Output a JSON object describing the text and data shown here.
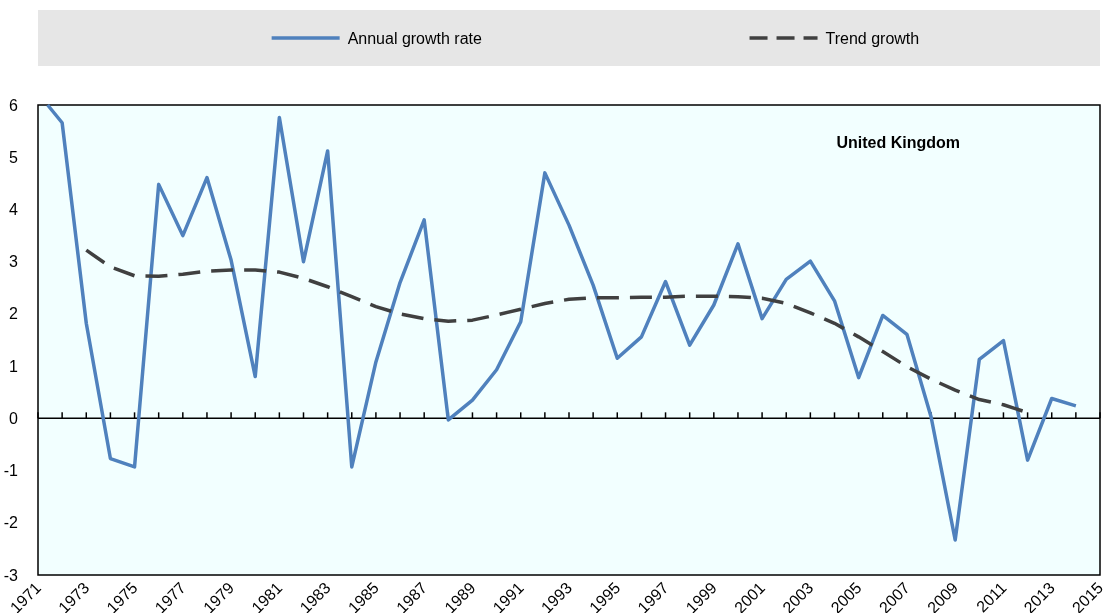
{
  "chart_data": {
    "type": "line",
    "legend": "top",
    "grid": false,
    "xlim": [
      1971,
      2015
    ],
    "xticks": [
      1971,
      {
        "value": 1972,
        "label": null
      },
      1973,
      {
        "value": 1974,
        "label": null
      },
      1975,
      {
        "value": 1976,
        "label": null
      },
      1977,
      {
        "value": 1978,
        "label": null
      },
      1979,
      {
        "value": 1980,
        "label": null
      },
      1981,
      {
        "value": 1982,
        "label": null
      },
      1983,
      {
        "value": 1984,
        "label": null
      },
      1985,
      {
        "value": 1986,
        "label": null
      },
      1987,
      {
        "value": 1988,
        "label": null
      },
      1989,
      {
        "value": 1990,
        "label": null
      },
      1991,
      {
        "value": 1992,
        "label": null
      },
      1993,
      {
        "value": 1994,
        "label": null
      },
      1995,
      {
        "value": 1996,
        "label": null
      },
      1997,
      {
        "value": 1998,
        "label": null
      },
      1999,
      {
        "value": 2000,
        "label": null
      },
      2001,
      {
        "value": 2002,
        "label": null
      },
      2003,
      {
        "value": 2004,
        "label": null
      },
      2005,
      {
        "value": 2006,
        "label": null
      },
      2007,
      {
        "value": 2008,
        "label": null
      },
      2009,
      {
        "value": 2010,
        "label": null
      },
      2011,
      {
        "value": 2012,
        "label": null
      },
      2013,
      {
        "value": 2014,
        "label": null
      },
      2015
    ],
    "ylim": [
      -3,
      6
    ],
    "yticks": [
      -3,
      -2,
      -1,
      0,
      1,
      2,
      3,
      4,
      5,
      6
    ],
    "annotations": [
      "United Kingdom"
    ],
    "ref_lines": [
      {
        "axis": "y",
        "value": 0,
        "color": "#000000"
      }
    ],
    "series": [
      {
        "name": "Annual growth rate",
        "color": "#4f81bd",
        "line_style": "solid",
        "x": [
          1971.4,
          1972,
          1973,
          1974,
          1975,
          1976,
          1977,
          1978,
          1979,
          1980,
          1981,
          1982,
          1983,
          1984,
          1985,
          1986,
          1987,
          1988,
          1989,
          1990,
          1991,
          1992,
          1993,
          1994,
          1995,
          1996,
          1997,
          1998,
          1999,
          2000,
          2001,
          2002,
          2003,
          2004,
          2005,
          2006,
          2007,
          2008,
          2009,
          2010,
          2011,
          2012,
          2013,
          2014
        ],
        "values": [
          6,
          5.66,
          1.82,
          -0.77,
          -0.93,
          4.48,
          3.5,
          4.61,
          3.03,
          0.8,
          5.76,
          3.0,
          5.12,
          -0.93,
          1.08,
          2.6,
          3.8,
          -0.03,
          0.35,
          0.93,
          1.85,
          4.7,
          3.7,
          2.55,
          1.15,
          1.56,
          2.62,
          1.4,
          2.17,
          3.34,
          1.91,
          2.66,
          3.01,
          2.25,
          0.78,
          1.97,
          1.61,
          0.03,
          -2.33,
          1.13,
          1.49,
          -0.8,
          0.38,
          0.24
        ]
      },
      {
        "name": "Trend growth",
        "color": "#404040",
        "line_style": "dashed",
        "x": [
          1973,
          1974,
          1975,
          1976,
          1977,
          1978,
          1979,
          1980,
          1981,
          1982,
          1983,
          1984,
          1985,
          1986,
          1987,
          1988,
          1989,
          1990,
          1991,
          1992,
          1993,
          1994,
          1995,
          1996,
          1997,
          1998,
          1999,
          2000,
          2001,
          2002,
          2003,
          2004,
          2005,
          2006,
          2007,
          2008,
          2009,
          2010,
          2011,
          2012
        ],
        "values": [
          3.22,
          2.9,
          2.73,
          2.72,
          2.76,
          2.82,
          2.84,
          2.84,
          2.8,
          2.68,
          2.52,
          2.33,
          2.14,
          2.0,
          1.91,
          1.86,
          1.88,
          1.98,
          2.09,
          2.2,
          2.28,
          2.31,
          2.31,
          2.32,
          2.32,
          2.34,
          2.34,
          2.33,
          2.3,
          2.2,
          2.02,
          1.82,
          1.56,
          1.28,
          0.99,
          0.75,
          0.54,
          0.36,
          0.26,
          0.11
        ]
      }
    ]
  }
}
